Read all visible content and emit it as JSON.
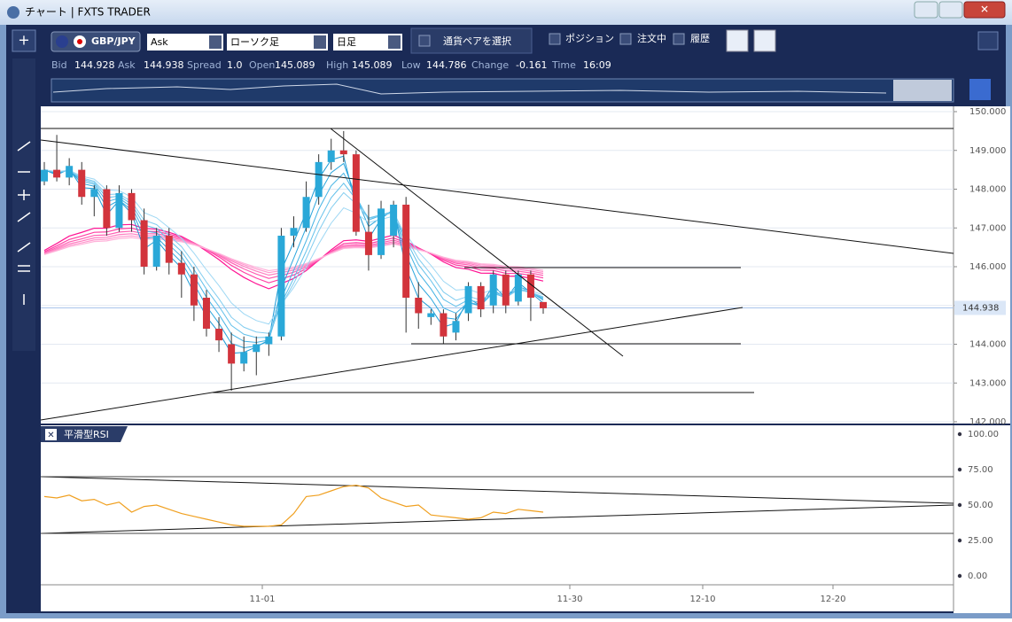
{
  "window": {
    "title": "チャート | FXTS TRADER"
  },
  "toolbar": {
    "pair": "GBP/JPY",
    "price_type": "Ask",
    "chart_type": "ローソク足",
    "period": "日足",
    "select_pair": "通貨ペアを選択",
    "checks": [
      "ポジション",
      "注文中",
      "履歴"
    ]
  },
  "quote": [
    {
      "label": "Bid",
      "value": "144.928"
    },
    {
      "label": "Ask",
      "value": "144.938"
    },
    {
      "label": "Spread",
      "value": "1.0"
    },
    {
      "label": "Open",
      "value": "145.089"
    },
    {
      "label": "High",
      "value": "145.089"
    },
    {
      "label": "Low",
      "value": "144.786"
    },
    {
      "label": "Change",
      "value": "-0.161"
    },
    {
      "label": "Time",
      "value": "16:09"
    }
  ],
  "chart_data": {
    "type": "candlestick",
    "open": [
      148.2,
      148.5,
      148.3,
      148.5,
      147.8,
      148.0,
      147.0,
      147.9,
      147.2,
      146.0,
      146.8,
      146.1,
      145.8,
      145.2,
      144.4,
      144.0,
      143.5,
      143.8,
      144.0,
      144.2,
      146.8,
      147.0,
      147.8,
      148.7,
      149.0,
      148.9,
      146.9,
      146.3,
      146.8,
      147.6,
      145.2,
      144.7,
      144.8,
      144.3,
      144.8,
      145.5,
      145.0,
      145.8,
      145.1,
      145.8,
      145.089
    ],
    "high": [
      148.7,
      149.4,
      148.8,
      148.7,
      148.1,
      148.1,
      148.1,
      148.0,
      147.5,
      147.0,
      147.0,
      146.4,
      146.0,
      145.4,
      144.7,
      144.3,
      144.2,
      144.2,
      144.3,
      147.0,
      147.3,
      148.2,
      148.9,
      149.3,
      149.5,
      149.0,
      147.6,
      147.7,
      147.7,
      147.8,
      145.6,
      144.9,
      144.9,
      144.8,
      145.6,
      145.6,
      145.9,
      145.9,
      145.9,
      145.9,
      145.089
    ],
    "low": [
      148.1,
      148.2,
      148.1,
      147.6,
      147.3,
      146.8,
      146.9,
      146.9,
      145.8,
      145.9,
      145.8,
      145.2,
      144.6,
      144.2,
      143.8,
      142.8,
      143.3,
      143.2,
      143.7,
      144.1,
      146.5,
      146.9,
      147.6,
      148.5,
      148.7,
      146.8,
      145.9,
      146.2,
      146.5,
      144.3,
      144.4,
      144.5,
      144.0,
      144.1,
      144.6,
      144.7,
      144.8,
      144.8,
      145.0,
      144.6,
      144.786
    ],
    "close": [
      148.5,
      148.3,
      148.6,
      147.8,
      148.0,
      147.0,
      147.9,
      147.2,
      146.0,
      146.8,
      146.1,
      145.8,
      145.0,
      144.4,
      144.1,
      143.5,
      143.8,
      144.0,
      144.2,
      146.8,
      147.0,
      147.8,
      148.7,
      149.0,
      148.9,
      146.9,
      146.3,
      147.5,
      147.6,
      145.2,
      144.8,
      144.8,
      144.2,
      144.6,
      145.5,
      144.9,
      145.8,
      145.0,
      145.8,
      145.2,
      144.928
    ],
    "up_color": "#2aa8d8",
    "down_color": "#d2343c",
    "ylim": [
      142,
      150
    ],
    "yticks": [
      {
        "value": 150,
        "label": "150.000"
      },
      {
        "value": 149,
        "label": "149.000"
      },
      {
        "value": 148,
        "label": "148.000"
      },
      {
        "value": 147,
        "label": "147.000"
      },
      {
        "value": 146,
        "label": "146.000"
      },
      {
        "value": 145,
        "label": "145.000"
      },
      {
        "value": 144,
        "label": "144.000"
      },
      {
        "value": 143,
        "label": "143.000"
      },
      {
        "value": 142,
        "label": "142.000"
      }
    ],
    "current": {
      "value": 144.938,
      "label": "144.938"
    },
    "x_labels": [
      "11-01",
      "11-30",
      "12-10",
      "12-20"
    ],
    "indicator": {
      "title": "平滑型RSI",
      "color": "#f0a020",
      "values": [
        56,
        55,
        57,
        53,
        54,
        50,
        52,
        45,
        49,
        50,
        47,
        44,
        42,
        40,
        38,
        36,
        35,
        35,
        35,
        36,
        44,
        56,
        57,
        60,
        63,
        64,
        62,
        55,
        52,
        49,
        50,
        43,
        42,
        41,
        40,
        41,
        45,
        44,
        47,
        46,
        45
      ],
      "ylim": [
        0,
        100
      ],
      "levels": [
        70,
        30
      ],
      "yticks": [
        {
          "value": 100,
          "label": "100.00"
        },
        {
          "value": 75,
          "label": "75.00"
        },
        {
          "value": 50,
          "label": "50.00"
        },
        {
          "value": 25,
          "label": "25.00"
        },
        {
          "value": 0,
          "label": "0.00"
        }
      ]
    }
  }
}
